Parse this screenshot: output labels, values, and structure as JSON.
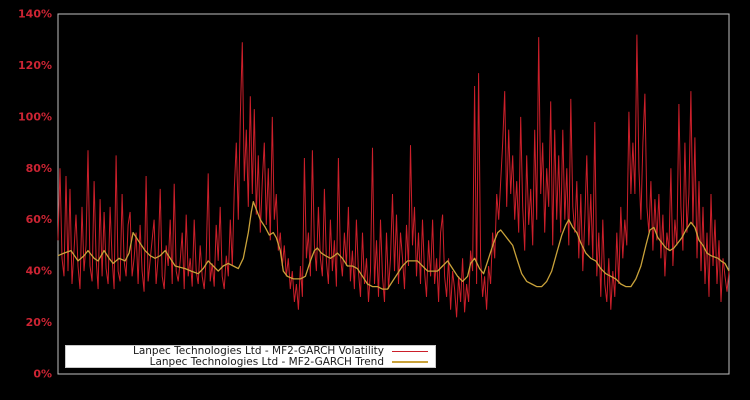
{
  "figure": {
    "background": "#000000",
    "frame_color": "#c0c0c0",
    "tick_label_color": "#cc2433",
    "legend_background": "#ffffff",
    "legend_text_color": "#1a1a1a"
  },
  "legend": {
    "entries": [
      {
        "label": "Lanpec Technologies Ltd - MF2-GARCH Volatility",
        "color": "#cc1f2a"
      },
      {
        "label": "Lanpec Technologies Ltd - MF2-GARCH Trend",
        "color": "#c9a23a"
      }
    ]
  },
  "chart_data": {
    "type": "line",
    "title": "",
    "xlabel": "",
    "ylabel": "",
    "ylim": [
      0,
      140
    ],
    "yticks": [
      "0%",
      "20%",
      "40%",
      "60%",
      "80%",
      "100%",
      "120%",
      "140%"
    ],
    "ytick_values": [
      0,
      20,
      40,
      60,
      80,
      100,
      120,
      140
    ],
    "xticks": [],
    "grid": false,
    "legend_position": "lower-left",
    "series": [
      {
        "name": "Lanpec Technologies Ltd - MF2-GARCH Volatility",
        "color": "#cc1f2a",
        "unit": "%",
        "values": [
          52,
          80,
          45,
          38,
          77,
          40,
          72,
          35,
          48,
          62,
          42,
          33,
          65,
          40,
          50,
          87,
          42,
          36,
          75,
          45,
          33,
          68,
          38,
          63,
          41,
          35,
          65,
          45,
          33,
          85,
          40,
          36,
          70,
          44,
          38,
          58,
          63,
          38,
          45,
          55,
          35,
          58,
          40,
          32,
          77,
          36,
          44,
          52,
          60,
          35,
          45,
          72,
          38,
          33,
          50,
          42,
          60,
          35,
          74,
          40,
          36,
          44,
          55,
          33,
          62,
          38,
          45,
          34,
          60,
          40,
          35,
          50,
          38,
          33,
          45,
          78,
          36,
          43,
          34,
          58,
          44,
          65,
          38,
          33,
          46,
          38,
          60,
          42,
          72,
          90,
          60,
          100,
          129,
          75,
          95,
          65,
          108,
          70,
          103,
          62,
          85,
          55,
          75,
          90,
          58,
          80,
          52,
          100,
          60,
          70,
          48,
          55,
          42,
          50,
          38,
          45,
          33,
          40,
          28,
          35,
          25,
          42,
          30,
          84,
          45,
          55,
          38,
          87,
          50,
          40,
          65,
          45,
          38,
          72,
          44,
          35,
          60,
          40,
          52,
          34,
          84,
          46,
          38,
          55,
          42,
          65,
          36,
          48,
          33,
          60,
          40,
          30,
          55,
          35,
          45,
          28,
          40,
          88,
          35,
          52,
          30,
          60,
          38,
          28,
          55,
          33,
          45,
          70,
          40,
          62,
          35,
          55,
          45,
          33,
          58,
          42,
          89,
          50,
          65,
          38,
          55,
          35,
          60,
          40,
          30,
          52,
          38,
          60,
          35,
          45,
          28,
          55,
          62,
          38,
          30,
          45,
          25,
          40,
          33,
          22,
          38,
          28,
          45,
          24,
          35,
          28,
          48,
          40,
          112,
          35,
          117,
          45,
          30,
          38,
          25,
          42,
          35,
          55,
          45,
          70,
          60,
          75,
          90,
          110,
          65,
          95,
          70,
          85,
          60,
          75,
          55,
          100,
          65,
          48,
          85,
          58,
          72,
          50,
          95,
          60,
          131,
          70,
          90,
          55,
          80,
          65,
          106,
          50,
          95,
          60,
          85,
          55,
          95,
          60,
          80,
          50,
          107,
          65,
          55,
          75,
          45,
          70,
          40,
          60,
          85,
          50,
          70,
          45,
          98,
          38,
          55,
          30,
          60,
          35,
          28,
          45,
          25,
          40,
          30,
          55,
          35,
          65,
          45,
          60,
          50,
          102,
          70,
          90,
          70,
          132,
          80,
          60,
          90,
          109,
          65,
          55,
          75,
          48,
          68,
          52,
          70,
          45,
          62,
          38,
          55,
          48,
          80,
          42,
          60,
          50,
          105,
          65,
          48,
          90,
          55,
          70,
          110,
          58,
          92,
          45,
          75,
          40,
          65,
          35,
          55,
          30,
          70,
          42,
          60,
          35,
          52,
          28,
          45,
          38,
          32,
          40
        ]
      },
      {
        "name": "Lanpec Technologies Ltd - MF2-GARCH Trend",
        "color": "#c9a23a",
        "unit": "%",
        "points": [
          [
            0,
            46
          ],
          [
            3,
            47
          ],
          [
            6.5,
            48
          ],
          [
            10,
            44
          ],
          [
            13,
            46
          ],
          [
            15,
            48
          ],
          [
            18,
            45
          ],
          [
            20,
            44
          ],
          [
            23,
            48
          ],
          [
            25.5,
            45
          ],
          [
            27.5,
            43
          ],
          [
            30.5,
            45
          ],
          [
            33.5,
            44
          ],
          [
            35.5,
            47
          ],
          [
            37.5,
            55
          ],
          [
            40,
            52
          ],
          [
            43.5,
            48
          ],
          [
            46,
            46
          ],
          [
            48.5,
            45
          ],
          [
            51,
            46
          ],
          [
            53.5,
            48
          ],
          [
            56,
            45
          ],
          [
            58.5,
            42
          ],
          [
            63.5,
            41
          ],
          [
            66.5,
            40
          ],
          [
            70,
            39
          ],
          [
            72.5,
            41
          ],
          [
            75,
            44
          ],
          [
            77.5,
            42
          ],
          [
            80,
            40
          ],
          [
            82.5,
            42
          ],
          [
            85,
            43
          ],
          [
            87.5,
            42
          ],
          [
            90,
            41
          ],
          [
            92.5,
            45
          ],
          [
            95,
            55
          ],
          [
            96.5,
            63
          ],
          [
            97.5,
            67
          ],
          [
            99,
            64
          ],
          [
            101,
            60
          ],
          [
            103.5,
            57
          ],
          [
            105.5,
            54
          ],
          [
            107.5,
            55
          ],
          [
            109,
            53
          ],
          [
            111,
            48
          ],
          [
            112.5,
            40
          ],
          [
            114.5,
            38
          ],
          [
            117.5,
            37
          ],
          [
            121,
            37
          ],
          [
            123.5,
            38
          ],
          [
            126,
            44
          ],
          [
            128,
            48
          ],
          [
            129.5,
            49
          ],
          [
            131.5,
            47
          ],
          [
            133.5,
            46
          ],
          [
            136,
            45
          ],
          [
            138,
            46
          ],
          [
            139.5,
            47
          ],
          [
            142,
            45
          ],
          [
            144.5,
            42
          ],
          [
            147,
            42
          ],
          [
            149.5,
            41
          ],
          [
            152,
            38
          ],
          [
            154.5,
            35
          ],
          [
            157,
            34
          ],
          [
            159.5,
            34
          ],
          [
            162,
            33
          ],
          [
            164.5,
            33
          ],
          [
            167,
            36
          ],
          [
            169.5,
            39
          ],
          [
            172,
            42
          ],
          [
            174.5,
            44
          ],
          [
            177,
            44
          ],
          [
            179.5,
            44
          ],
          [
            182,
            42
          ],
          [
            184.5,
            40
          ],
          [
            187,
            40
          ],
          [
            189.5,
            40
          ],
          [
            192,
            42
          ],
          [
            194.5,
            44
          ],
          [
            197,
            41
          ],
          [
            199.5,
            38
          ],
          [
            202,
            36
          ],
          [
            204.5,
            38
          ],
          [
            206,
            43
          ],
          [
            208,
            45
          ],
          [
            210.5,
            41
          ],
          [
            212.5,
            39
          ],
          [
            215,
            45
          ],
          [
            217.5,
            51
          ],
          [
            219.5,
            55
          ],
          [
            221,
            56
          ],
          [
            223,
            54
          ],
          [
            225,
            52
          ],
          [
            227,
            50
          ],
          [
            229,
            45
          ],
          [
            231.5,
            39
          ],
          [
            234,
            36
          ],
          [
            236.5,
            35
          ],
          [
            239,
            34
          ],
          [
            241.5,
            34
          ],
          [
            244,
            36
          ],
          [
            246.5,
            40
          ],
          [
            249,
            47
          ],
          [
            251.5,
            54
          ],
          [
            253.5,
            58
          ],
          [
            255,
            60
          ],
          [
            257,
            57
          ],
          [
            259,
            55
          ],
          [
            261,
            51
          ],
          [
            263.5,
            47
          ],
          [
            266,
            45
          ],
          [
            268.5,
            44
          ],
          [
            271,
            41
          ],
          [
            273.5,
            39
          ],
          [
            276,
            38
          ],
          [
            278.5,
            37
          ],
          [
            281,
            35
          ],
          [
            283.5,
            34
          ],
          [
            286,
            34
          ],
          [
            288.5,
            37
          ],
          [
            291,
            42
          ],
          [
            293.5,
            50
          ],
          [
            295.5,
            56
          ],
          [
            297.5,
            57
          ],
          [
            299.5,
            53
          ],
          [
            301.5,
            51
          ],
          [
            303.5,
            49
          ],
          [
            305.5,
            48
          ],
          [
            307.5,
            49
          ],
          [
            309.5,
            51
          ],
          [
            311.5,
            53
          ],
          [
            313.5,
            56
          ],
          [
            316,
            59
          ],
          [
            318,
            57
          ],
          [
            320,
            52
          ],
          [
            322,
            50
          ],
          [
            324,
            47
          ],
          [
            326,
            46
          ],
          [
            329.5,
            45
          ],
          [
            331,
            44
          ],
          [
            333,
            43
          ],
          [
            335,
            40
          ]
        ]
      }
    ]
  }
}
